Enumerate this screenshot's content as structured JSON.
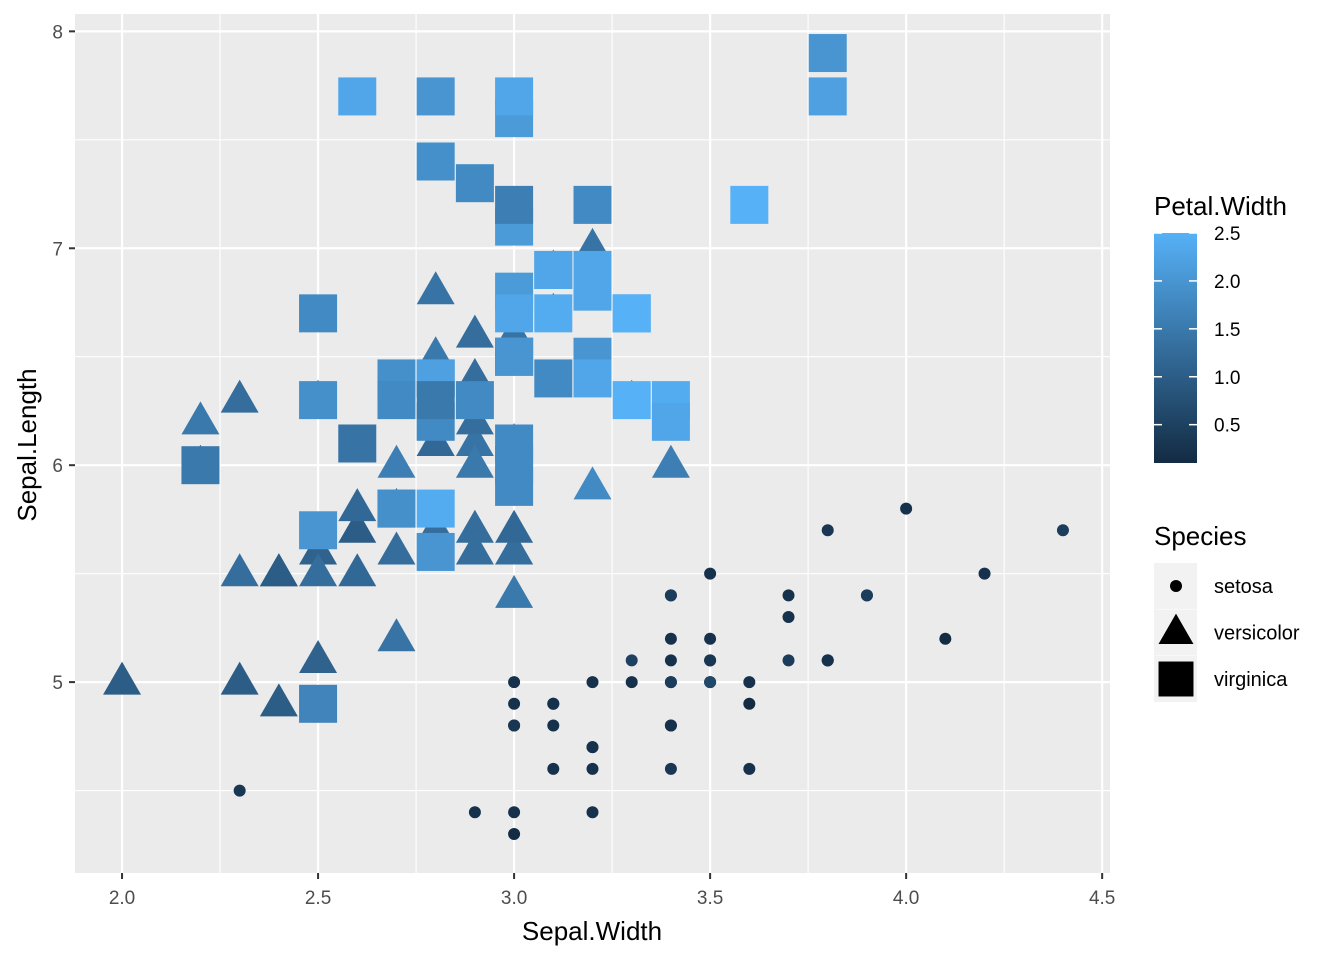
{
  "chart_data": {
    "type": "scatter",
    "title": "",
    "xlabel": "Sepal.Width",
    "ylabel": "Sepal.Length",
    "xlim": [
      1.88,
      4.52
    ],
    "ylim": [
      4.12,
      8.08
    ],
    "xticks": [
      "2.0",
      "2.5",
      "3.0",
      "3.5",
      "4.0",
      "4.5"
    ],
    "yticks": [
      "5",
      "6",
      "7",
      "8"
    ],
    "grid": true,
    "color_legend": {
      "title": "Petal.Width",
      "ticks": [
        "0.5",
        "1.0",
        "1.5",
        "2.0",
        "2.5"
      ],
      "range": [
        0.1,
        2.5
      ],
      "low_color": "#132B43",
      "high_color": "#56B1F7",
      "placement": "right"
    },
    "shape_legend": {
      "title": "Species",
      "entries": [
        {
          "label": "setosa",
          "shape": "circle"
        },
        {
          "label": "versicolor",
          "shape": "triangle"
        },
        {
          "label": "virginica",
          "shape": "square"
        }
      ],
      "placement": "right"
    },
    "point_fields": [
      "Sepal.Width",
      "Sepal.Length",
      "Petal.Width"
    ],
    "series": [
      {
        "name": "setosa",
        "points": [
          [
            3.5,
            5.1,
            0.2
          ],
          [
            3.0,
            4.9,
            0.2
          ],
          [
            3.2,
            4.7,
            0.2
          ],
          [
            3.1,
            4.6,
            0.2
          ],
          [
            3.6,
            5.0,
            0.2
          ],
          [
            3.9,
            5.4,
            0.4
          ],
          [
            3.4,
            4.6,
            0.3
          ],
          [
            3.4,
            5.0,
            0.2
          ],
          [
            2.9,
            4.4,
            0.2
          ],
          [
            3.1,
            4.9,
            0.1
          ],
          [
            3.7,
            5.4,
            0.2
          ],
          [
            3.4,
            4.8,
            0.2
          ],
          [
            3.0,
            4.8,
            0.1
          ],
          [
            3.0,
            4.3,
            0.1
          ],
          [
            4.0,
            5.8,
            0.2
          ],
          [
            4.4,
            5.7,
            0.4
          ],
          [
            3.9,
            5.4,
            0.4
          ],
          [
            3.5,
            5.1,
            0.3
          ],
          [
            3.8,
            5.7,
            0.3
          ],
          [
            3.8,
            5.1,
            0.3
          ],
          [
            3.4,
            5.4,
            0.2
          ],
          [
            3.7,
            5.1,
            0.4
          ],
          [
            3.6,
            4.6,
            0.2
          ],
          [
            3.3,
            5.1,
            0.5
          ],
          [
            3.4,
            4.8,
            0.2
          ],
          [
            3.0,
            5.0,
            0.2
          ],
          [
            3.4,
            5.0,
            0.4
          ],
          [
            3.5,
            5.2,
            0.2
          ],
          [
            3.4,
            5.2,
            0.2
          ],
          [
            3.2,
            4.7,
            0.2
          ],
          [
            3.1,
            4.8,
            0.2
          ],
          [
            3.4,
            5.4,
            0.4
          ],
          [
            4.1,
            5.2,
            0.1
          ],
          [
            4.2,
            5.5,
            0.2
          ],
          [
            3.1,
            4.9,
            0.2
          ],
          [
            3.2,
            5.0,
            0.2
          ],
          [
            3.5,
            5.5,
            0.2
          ],
          [
            3.6,
            4.9,
            0.1
          ],
          [
            3.0,
            4.4,
            0.2
          ],
          [
            3.4,
            5.1,
            0.2
          ],
          [
            3.5,
            5.0,
            0.3
          ],
          [
            2.3,
            4.5,
            0.3
          ],
          [
            3.2,
            4.4,
            0.2
          ],
          [
            3.5,
            5.0,
            0.6
          ],
          [
            3.8,
            5.1,
            0.4
          ],
          [
            3.0,
            4.8,
            0.3
          ],
          [
            3.8,
            5.1,
            0.2
          ],
          [
            3.2,
            4.6,
            0.2
          ],
          [
            3.7,
            5.3,
            0.2
          ],
          [
            3.3,
            5.0,
            0.2
          ]
        ]
      },
      {
        "name": "versicolor",
        "points": [
          [
            3.2,
            7.0,
            1.4
          ],
          [
            3.2,
            6.4,
            1.5
          ],
          [
            3.1,
            6.9,
            1.5
          ],
          [
            2.3,
            5.5,
            1.3
          ],
          [
            2.8,
            6.5,
            1.5
          ],
          [
            2.8,
            5.7,
            1.3
          ],
          [
            3.3,
            6.3,
            1.6
          ],
          [
            2.4,
            4.9,
            1.0
          ],
          [
            2.9,
            6.6,
            1.3
          ],
          [
            2.7,
            5.2,
            1.4
          ],
          [
            2.0,
            5.0,
            1.0
          ],
          [
            3.0,
            5.9,
            1.5
          ],
          [
            2.2,
            6.0,
            1.0
          ],
          [
            2.9,
            6.1,
            1.4
          ],
          [
            2.9,
            5.6,
            1.3
          ],
          [
            3.1,
            6.7,
            1.4
          ],
          [
            3.0,
            5.6,
            1.5
          ],
          [
            2.7,
            5.8,
            1.0
          ],
          [
            2.2,
            6.2,
            1.5
          ],
          [
            2.5,
            5.6,
            1.1
          ],
          [
            3.2,
            5.9,
            1.8
          ],
          [
            2.8,
            6.1,
            1.3
          ],
          [
            2.5,
            6.3,
            1.5
          ],
          [
            2.8,
            6.1,
            1.2
          ],
          [
            2.9,
            6.4,
            1.3
          ],
          [
            3.0,
            6.6,
            1.4
          ],
          [
            2.8,
            6.8,
            1.4
          ],
          [
            3.0,
            6.7,
            1.7
          ],
          [
            2.9,
            6.0,
            1.5
          ],
          [
            2.6,
            5.7,
            1.0
          ],
          [
            2.4,
            5.5,
            1.1
          ],
          [
            2.4,
            5.5,
            1.0
          ],
          [
            2.7,
            5.8,
            1.2
          ],
          [
            2.7,
            6.0,
            1.6
          ],
          [
            3.0,
            5.4,
            1.5
          ],
          [
            3.4,
            6.0,
            1.6
          ],
          [
            3.1,
            6.7,
            1.5
          ],
          [
            2.3,
            6.3,
            1.3
          ],
          [
            3.0,
            5.6,
            1.3
          ],
          [
            2.5,
            5.5,
            1.3
          ],
          [
            2.6,
            5.5,
            1.2
          ],
          [
            3.0,
            6.1,
            1.4
          ],
          [
            2.6,
            5.8,
            1.2
          ],
          [
            2.3,
            5.0,
            1.0
          ],
          [
            2.7,
            5.6,
            1.3
          ],
          [
            3.0,
            5.7,
            1.2
          ],
          [
            2.9,
            5.7,
            1.3
          ],
          [
            2.9,
            6.2,
            1.3
          ],
          [
            2.5,
            5.1,
            1.1
          ],
          [
            2.8,
            5.7,
            1.3
          ]
        ]
      },
      {
        "name": "virginica",
        "points": [
          [
            3.3,
            6.3,
            2.5
          ],
          [
            2.7,
            5.8,
            1.9
          ],
          [
            3.0,
            7.1,
            2.1
          ],
          [
            2.9,
            6.3,
            1.8
          ],
          [
            3.0,
            6.5,
            2.2
          ],
          [
            3.0,
            7.6,
            2.1
          ],
          [
            2.5,
            4.9,
            1.7
          ],
          [
            2.9,
            7.3,
            1.8
          ],
          [
            2.5,
            6.7,
            1.8
          ],
          [
            3.6,
            7.2,
            2.5
          ],
          [
            3.2,
            6.5,
            2.0
          ],
          [
            2.7,
            6.4,
            1.9
          ],
          [
            3.0,
            6.8,
            2.1
          ],
          [
            2.5,
            5.7,
            2.0
          ],
          [
            2.8,
            5.8,
            2.4
          ],
          [
            3.2,
            6.4,
            2.3
          ],
          [
            3.0,
            6.5,
            1.8
          ],
          [
            3.8,
            7.7,
            2.2
          ],
          [
            2.6,
            7.7,
            2.3
          ],
          [
            2.2,
            6.0,
            1.5
          ],
          [
            3.2,
            6.9,
            2.3
          ],
          [
            2.8,
            5.6,
            2.0
          ],
          [
            2.8,
            7.7,
            2.0
          ],
          [
            2.7,
            6.3,
            1.8
          ],
          [
            3.3,
            6.7,
            2.1
          ],
          [
            3.2,
            7.2,
            1.8
          ],
          [
            2.8,
            6.2,
            1.8
          ],
          [
            3.0,
            6.1,
            1.8
          ],
          [
            2.8,
            6.4,
            2.1
          ],
          [
            3.0,
            7.2,
            1.6
          ],
          [
            2.8,
            7.4,
            1.9
          ],
          [
            3.8,
            7.9,
            2.0
          ],
          [
            2.8,
            6.4,
            2.2
          ],
          [
            2.8,
            6.3,
            1.5
          ],
          [
            2.6,
            6.1,
            1.4
          ],
          [
            3.0,
            7.7,
            2.3
          ],
          [
            3.4,
            6.3,
            2.4
          ],
          [
            3.1,
            6.4,
            1.8
          ],
          [
            3.0,
            6.0,
            1.8
          ],
          [
            3.1,
            6.9,
            2.1
          ],
          [
            3.1,
            6.7,
            2.4
          ],
          [
            3.1,
            6.9,
            2.3
          ],
          [
            2.7,
            5.8,
            1.9
          ],
          [
            3.2,
            6.8,
            2.3
          ],
          [
            3.3,
            6.7,
            2.5
          ],
          [
            3.0,
            6.7,
            2.3
          ],
          [
            2.5,
            6.3,
            1.9
          ],
          [
            3.0,
            6.5,
            2.0
          ],
          [
            3.4,
            6.2,
            2.3
          ],
          [
            3.0,
            5.9,
            1.8
          ]
        ]
      }
    ]
  }
}
